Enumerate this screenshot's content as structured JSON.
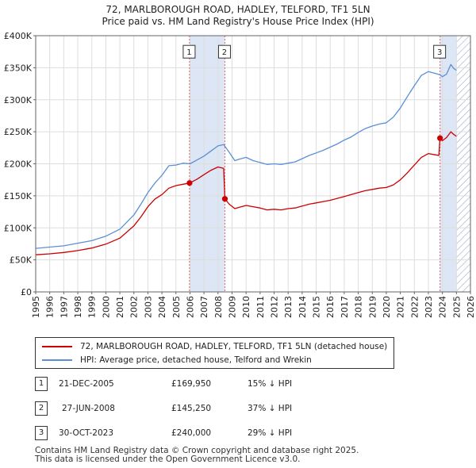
{
  "header": {
    "title": "72, MARLBOROUGH ROAD, HADLEY, TELFORD, TF1 5LN",
    "subtitle": "Price paid vs. HM Land Registry's House Price Index (HPI)"
  },
  "colors": {
    "price_line": "#cc0000",
    "hpi_line": "#5b8fd6",
    "band_fill": "#dde6f5",
    "hatch": "#9aa8bf",
    "vline": "#e06666"
  },
  "chart_data": {
    "type": "line",
    "title": "Price paid vs. HM Land Registry's House Price Index (HPI)",
    "xlim": [
      1995,
      2026
    ],
    "ylim": [
      0,
      400000
    ],
    "xticks": [
      "1995",
      "1996",
      "1997",
      "1998",
      "1999",
      "2000",
      "2001",
      "2002",
      "2003",
      "2004",
      "2005",
      "2006",
      "2007",
      "2008",
      "2009",
      "2010",
      "2011",
      "2012",
      "2013",
      "2014",
      "2015",
      "2016",
      "2017",
      "2018",
      "2019",
      "2020",
      "2021",
      "2022",
      "2023",
      "2024",
      "2025",
      "2026"
    ],
    "yticks": [
      {
        "value": 0,
        "label": "£0"
      },
      {
        "value": 50000,
        "label": "£50K"
      },
      {
        "value": 100000,
        "label": "£100K"
      },
      {
        "value": 150000,
        "label": "£150K"
      },
      {
        "value": 200000,
        "label": "£200K"
      },
      {
        "value": 250000,
        "label": "£250K"
      },
      {
        "value": 300000,
        "label": "£300K"
      },
      {
        "value": 350000,
        "label": "£350K"
      },
      {
        "value": 400000,
        "label": "£400K"
      }
    ],
    "shaded_ranges": [
      [
        2005.97,
        2008.49
      ],
      [
        2023.83,
        2025.0
      ]
    ],
    "hatched_range": [
      2025.0,
      2026
    ],
    "series": [
      {
        "name": "72, MARLBOROUGH ROAD, HADLEY, TELFORD, TF1 5LN (detached house)",
        "color": "#cc0000",
        "points": [
          [
            1995.0,
            58000
          ],
          [
            1996.0,
            59500
          ],
          [
            1997.0,
            61500
          ],
          [
            1998.0,
            64500
          ],
          [
            1999.0,
            68500
          ],
          [
            2000.0,
            74500
          ],
          [
            2001.0,
            84000
          ],
          [
            2002.0,
            103000
          ],
          [
            2002.5,
            117000
          ],
          [
            2003.0,
            133000
          ],
          [
            2003.5,
            145000
          ],
          [
            2004.0,
            152000
          ],
          [
            2004.5,
            162000
          ],
          [
            2005.0,
            166000
          ],
          [
            2005.5,
            168000
          ],
          [
            2005.97,
            169950
          ],
          [
            2006.5,
            176000
          ],
          [
            2007.0,
            183000
          ],
          [
            2007.5,
            190000
          ],
          [
            2008.0,
            195000
          ],
          [
            2008.4,
            193000
          ],
          [
            2008.49,
            145250
          ],
          [
            2008.8,
            137000
          ],
          [
            2009.2,
            130000
          ],
          [
            2009.5,
            132000
          ],
          [
            2010.0,
            135000
          ],
          [
            2010.5,
            133000
          ],
          [
            2011.0,
            131000
          ],
          [
            2011.5,
            128000
          ],
          [
            2012.0,
            129000
          ],
          [
            2012.5,
            128000
          ],
          [
            2013.0,
            130000
          ],
          [
            2013.5,
            131000
          ],
          [
            2014.0,
            134000
          ],
          [
            2014.5,
            137000
          ],
          [
            2015.0,
            139000
          ],
          [
            2015.5,
            141000
          ],
          [
            2016.0,
            143000
          ],
          [
            2016.5,
            146000
          ],
          [
            2017.0,
            149000
          ],
          [
            2017.5,
            152000
          ],
          [
            2018.0,
            155000
          ],
          [
            2018.5,
            158000
          ],
          [
            2019.0,
            160000
          ],
          [
            2019.5,
            162000
          ],
          [
            2020.0,
            163000
          ],
          [
            2020.5,
            167000
          ],
          [
            2021.0,
            175000
          ],
          [
            2021.5,
            186000
          ],
          [
            2022.0,
            198000
          ],
          [
            2022.5,
            210000
          ],
          [
            2023.0,
            216000
          ],
          [
            2023.5,
            214000
          ],
          [
            2023.75,
            213000
          ],
          [
            2023.83,
            240000
          ],
          [
            2024.0,
            236000
          ],
          [
            2024.3,
            241000
          ],
          [
            2024.6,
            250000
          ],
          [
            2024.8,
            246000
          ],
          [
            2025.0,
            243000
          ]
        ]
      },
      {
        "name": "HPI: Average price, detached house, Telford and Wrekin",
        "color": "#5b8fd6",
        "points": [
          [
            1995.0,
            68000
          ],
          [
            1996.0,
            70000
          ],
          [
            1997.0,
            72000
          ],
          [
            1998.0,
            76000
          ],
          [
            1999.0,
            80000
          ],
          [
            2000.0,
            87000
          ],
          [
            2001.0,
            98000
          ],
          [
            2002.0,
            120000
          ],
          [
            2002.5,
            137000
          ],
          [
            2003.0,
            155000
          ],
          [
            2003.5,
            170000
          ],
          [
            2004.0,
            182000
          ],
          [
            2004.5,
            197000
          ],
          [
            2005.0,
            198000
          ],
          [
            2005.5,
            201000
          ],
          [
            2006.0,
            200000
          ],
          [
            2006.5,
            206000
          ],
          [
            2007.0,
            212000
          ],
          [
            2007.5,
            220000
          ],
          [
            2008.0,
            228000
          ],
          [
            2008.4,
            230000
          ],
          [
            2008.8,
            218000
          ],
          [
            2009.2,
            205000
          ],
          [
            2009.5,
            207000
          ],
          [
            2010.0,
            210000
          ],
          [
            2010.5,
            205000
          ],
          [
            2011.0,
            202000
          ],
          [
            2011.5,
            199000
          ],
          [
            2012.0,
            200000
          ],
          [
            2012.5,
            199000
          ],
          [
            2013.0,
            201000
          ],
          [
            2013.5,
            203000
          ],
          [
            2014.0,
            208000
          ],
          [
            2014.5,
            213000
          ],
          [
            2015.0,
            217000
          ],
          [
            2015.5,
            221000
          ],
          [
            2016.0,
            226000
          ],
          [
            2016.5,
            231000
          ],
          [
            2017.0,
            237000
          ],
          [
            2017.5,
            242000
          ],
          [
            2018.0,
            249000
          ],
          [
            2018.5,
            255000
          ],
          [
            2019.0,
            259000
          ],
          [
            2019.5,
            262000
          ],
          [
            2020.0,
            264000
          ],
          [
            2020.5,
            273000
          ],
          [
            2021.0,
            287000
          ],
          [
            2021.5,
            305000
          ],
          [
            2022.0,
            322000
          ],
          [
            2022.5,
            338000
          ],
          [
            2023.0,
            344000
          ],
          [
            2023.5,
            341000
          ],
          [
            2023.83,
            339000
          ],
          [
            2024.0,
            336000
          ],
          [
            2024.3,
            340000
          ],
          [
            2024.6,
            355000
          ],
          [
            2024.8,
            349000
          ],
          [
            2025.0,
            346000
          ]
        ]
      }
    ],
    "markers": [
      {
        "label": "1",
        "x": 2005.97,
        "y": 169950,
        "box_y": 375000
      },
      {
        "label": "2",
        "x": 2008.49,
        "y": 145250,
        "box_y": 375000
      },
      {
        "label": "3",
        "x": 2023.83,
        "y": 240000,
        "box_y": 375000
      }
    ]
  },
  "legend": {
    "items": [
      {
        "label": "72, MARLBOROUGH ROAD, HADLEY, TELFORD, TF1 5LN (detached house)"
      },
      {
        "label": "HPI: Average price, detached house, Telford and Wrekin"
      }
    ]
  },
  "transactions": [
    {
      "num": "1",
      "date": "21-DEC-2005",
      "price": "£169,950",
      "hpi": "15% ↓ HPI"
    },
    {
      "num": "2",
      "date": "27-JUN-2008",
      "price": "£145,250",
      "hpi": "37% ↓ HPI"
    },
    {
      "num": "3",
      "date": "30-OCT-2023",
      "price": "£240,000",
      "hpi": "29% ↓ HPI"
    }
  ],
  "footer": {
    "line1": "Contains HM Land Registry data © Crown copyright and database right 2025.",
    "line2": "This data is licensed under the Open Government Licence v3.0."
  }
}
